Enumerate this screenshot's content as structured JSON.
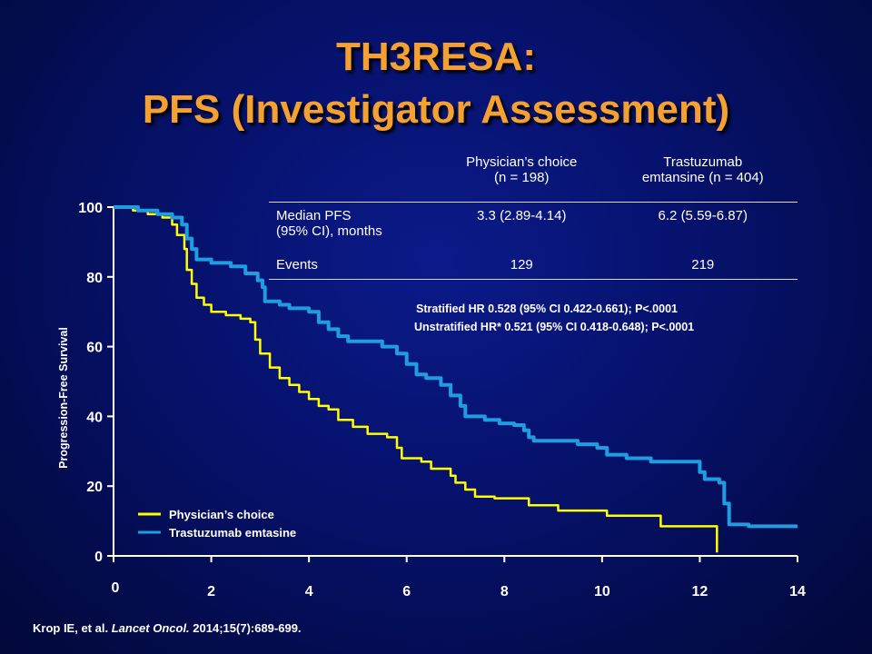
{
  "title": {
    "line1": "TH3RESA:",
    "line2": "PFS (Investigator Assessment)"
  },
  "table": {
    "col1_header_line1": "Physician’s choice",
    "col1_header_line2": "(n = 198)",
    "col2_header_line1": "Trastuzumab",
    "col2_header_line2": "emtansine (n = 404)",
    "row1_label_line1": "Median PFS",
    "row1_label_line2": "(95% CI), months",
    "row1_col1": "3.3 (2.89-4.14)",
    "row1_col2": "6.2 (5.59-6.87)",
    "row2_label": "Events",
    "row2_col1": "129",
    "row2_col2": "219"
  },
  "hazard_ratios": {
    "stratified": "Stratified HR 0.528 (95% CI 0.422-0.661); P<.0001",
    "unstratified": "Unstratified HR* 0.521 (95% CI 0.418-0.648); P<.0001"
  },
  "citation": {
    "authors": "Krop IE, et al.",
    "journal": "Lancet Oncol.",
    "ref": "2014;15(7):689-699."
  },
  "chart_data": {
    "type": "line",
    "ylabel": "Progression-Free  Survival",
    "xlabel": "",
    "xlim": [
      0,
      14
    ],
    "ylim": [
      0,
      100
    ],
    "x_ticks": [
      "0",
      "2",
      "4",
      "6",
      "8",
      "10",
      "12",
      "14"
    ],
    "y_ticks": [
      "0",
      "20",
      "40",
      "60",
      "80",
      "100"
    ],
    "legend_position": "bottom-left",
    "series": [
      {
        "name": "Physician’s  choice",
        "color": "#ffff00",
        "points": [
          [
            0,
            100
          ],
          [
            0.4,
            99
          ],
          [
            0.7,
            98
          ],
          [
            1.0,
            97
          ],
          [
            1.2,
            95
          ],
          [
            1.3,
            92
          ],
          [
            1.45,
            88
          ],
          [
            1.5,
            82
          ],
          [
            1.6,
            78
          ],
          [
            1.7,
            74
          ],
          [
            1.85,
            72
          ],
          [
            2.0,
            70
          ],
          [
            2.3,
            69
          ],
          [
            2.6,
            68
          ],
          [
            2.8,
            67
          ],
          [
            2.9,
            62
          ],
          [
            3.0,
            58
          ],
          [
            3.2,
            54
          ],
          [
            3.4,
            51
          ],
          [
            3.6,
            49
          ],
          [
            3.8,
            47
          ],
          [
            4.0,
            45
          ],
          [
            4.2,
            43
          ],
          [
            4.4,
            42
          ],
          [
            4.6,
            39
          ],
          [
            4.9,
            37
          ],
          [
            5.2,
            35
          ],
          [
            5.6,
            34
          ],
          [
            5.8,
            31
          ],
          [
            5.9,
            28
          ],
          [
            6.3,
            27
          ],
          [
            6.5,
            25
          ],
          [
            6.9,
            23
          ],
          [
            7.0,
            21
          ],
          [
            7.2,
            19
          ],
          [
            7.4,
            17
          ],
          [
            7.8,
            16.5
          ],
          [
            8.4,
            16.5
          ],
          [
            8.5,
            14.5
          ],
          [
            9.0,
            14.5
          ],
          [
            9.1,
            13
          ],
          [
            10.0,
            13
          ],
          [
            10.1,
            11.5
          ],
          [
            11.1,
            11.5
          ],
          [
            11.2,
            8.5
          ],
          [
            12.3,
            8.5
          ],
          [
            12.35,
            1
          ]
        ]
      },
      {
        "name": "Trastuzumab  emtasine",
        "color": "#1e9de0",
        "points": [
          [
            0,
            100
          ],
          [
            0.5,
            99
          ],
          [
            0.9,
            98
          ],
          [
            1.2,
            97
          ],
          [
            1.4,
            95
          ],
          [
            1.5,
            91
          ],
          [
            1.6,
            88
          ],
          [
            1.7,
            85
          ],
          [
            2.0,
            84
          ],
          [
            2.4,
            83
          ],
          [
            2.7,
            81
          ],
          [
            2.95,
            79
          ],
          [
            3.05,
            77
          ],
          [
            3.1,
            73
          ],
          [
            3.4,
            72
          ],
          [
            3.6,
            71
          ],
          [
            4.0,
            70
          ],
          [
            4.2,
            67
          ],
          [
            4.4,
            65
          ],
          [
            4.6,
            63
          ],
          [
            4.8,
            61.5
          ],
          [
            5.2,
            61.5
          ],
          [
            5.5,
            60
          ],
          [
            5.8,
            58
          ],
          [
            6.0,
            55
          ],
          [
            6.2,
            52
          ],
          [
            6.4,
            51
          ],
          [
            6.7,
            49
          ],
          [
            6.9,
            46
          ],
          [
            7.1,
            43
          ],
          [
            7.2,
            40
          ],
          [
            7.6,
            39
          ],
          [
            7.9,
            38
          ],
          [
            8.2,
            37.5
          ],
          [
            8.4,
            36
          ],
          [
            8.5,
            34
          ],
          [
            8.6,
            33
          ],
          [
            9.2,
            33
          ],
          [
            9.5,
            32
          ],
          [
            9.9,
            31
          ],
          [
            10.1,
            29
          ],
          [
            10.5,
            28
          ],
          [
            11.0,
            27
          ],
          [
            11.9,
            27
          ],
          [
            12.0,
            24
          ],
          [
            12.1,
            22
          ],
          [
            12.4,
            21
          ],
          [
            12.5,
            15
          ],
          [
            12.6,
            9
          ],
          [
            13.0,
            8.5
          ],
          [
            14.0,
            8.5
          ]
        ]
      }
    ]
  }
}
